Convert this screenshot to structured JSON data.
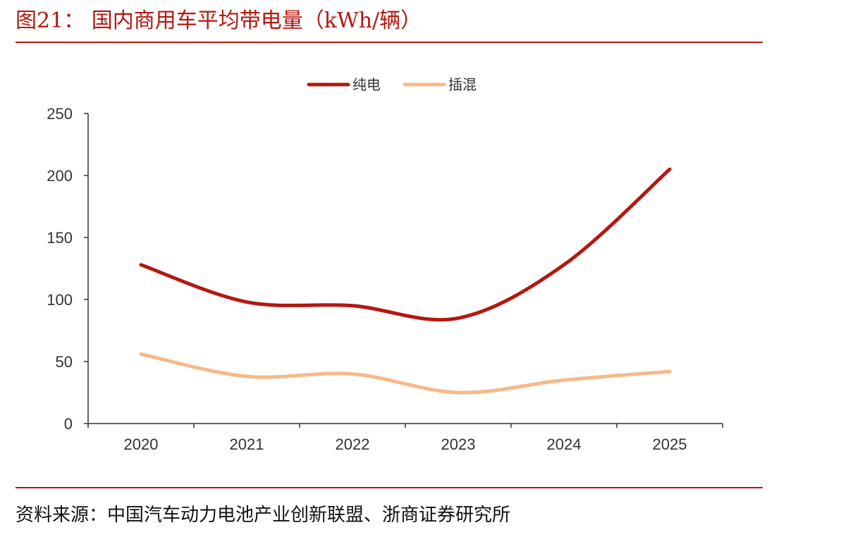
{
  "header": {
    "figure_title": "图21：  国内商用车平均带电量（kWh/辆）"
  },
  "footer": {
    "source": "资料来源：中国汽车动力电池产业创新联盟、浙商证券研究所"
  },
  "colors": {
    "accent": "#b5170f",
    "series_bev": "#b5170f",
    "series_phev": "#f7b98a",
    "axis": "#333333"
  },
  "chart_data": {
    "type": "line",
    "title": "",
    "xlabel": "",
    "ylabel": "",
    "categories": [
      "2020",
      "2021",
      "2022",
      "2023",
      "2024",
      "2025"
    ],
    "series": [
      {
        "name": "纯电",
        "values": [
          128,
          98,
          95,
          85,
          128,
          205
        ]
      },
      {
        "name": "插混",
        "values": [
          56,
          38,
          40,
          25,
          35,
          42
        ]
      }
    ],
    "ylim": [
      0,
      250
    ],
    "yticks": [
      0,
      50,
      100,
      150,
      200,
      250
    ],
    "grid": false,
    "legend_position": "top-center",
    "smooth": true
  }
}
